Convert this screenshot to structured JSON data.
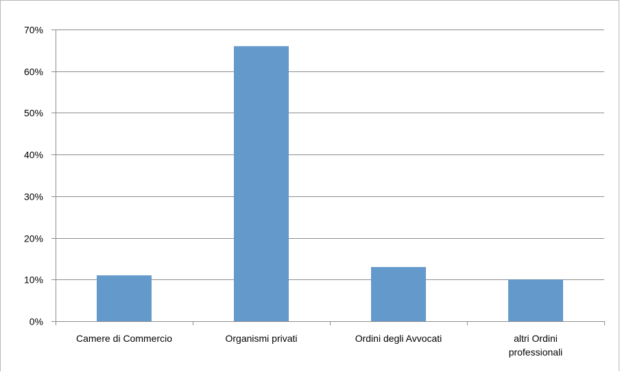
{
  "chart_data": {
    "type": "bar",
    "categories": [
      "Camere di Commercio",
      "Organismi privati",
      "Ordini degli Avvocati",
      "altri Ordini professionali"
    ],
    "values": [
      11,
      66,
      13,
      10
    ],
    "ylim": [
      0,
      70
    ],
    "yticks": [
      0,
      10,
      20,
      30,
      40,
      50,
      60,
      70
    ],
    "ytick_labels": [
      "0%",
      "10%",
      "20%",
      "30%",
      "40%",
      "50%",
      "60%",
      "70%"
    ],
    "title": "",
    "xlabel": "",
    "ylabel": "",
    "grid": true,
    "legend": "none",
    "bar_color": "#6399CB",
    "grid_color": "#8c8c8c"
  }
}
